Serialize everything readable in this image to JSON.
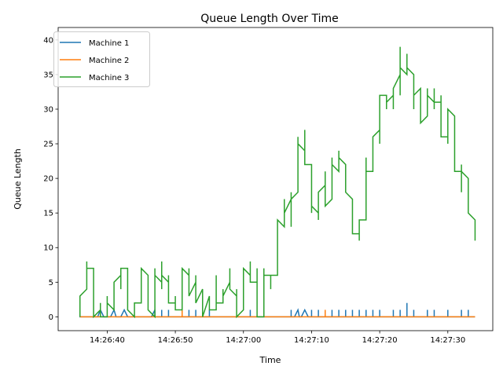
{
  "chart_data": {
    "type": "line",
    "title": "Queue Length Over Time",
    "xlabel": "Time",
    "ylabel": "Queue Length",
    "xlim": [
      "14:26:32.8",
      "14:27:36.6"
    ],
    "ylim": [
      -2,
      41.8
    ],
    "x_ticks": [
      "14:26:40",
      "14:26:50",
      "14:27:00",
      "14:27:10",
      "14:27:20",
      "14:27:30"
    ],
    "y_ticks": [
      0,
      5,
      10,
      15,
      20,
      25,
      30,
      35,
      40
    ],
    "grid": false,
    "legend_position": "top-left",
    "series": [
      {
        "name": "Machine 1",
        "color": "#1f77b4",
        "points": [
          [
            "14:26:36.0",
            0
          ],
          [
            "14:26:36.0",
            1
          ],
          [
            "14:26:36.0",
            0
          ],
          [
            "14:26:38.6",
            0
          ],
          [
            "14:26:39.0",
            1
          ],
          [
            "14:26:39.5",
            0
          ],
          [
            "14:26:40.5",
            0
          ],
          [
            "14:26:41.0",
            1
          ],
          [
            "14:26:41.3",
            0
          ],
          [
            "14:26:42.0",
            0
          ],
          [
            "14:26:42.5",
            1
          ],
          [
            "14:26:43.0",
            0
          ],
          [
            "14:26:46.5",
            0
          ],
          [
            "14:26:47.0",
            1
          ],
          [
            "14:26:47.0",
            0
          ],
          [
            "14:26:48.0",
            0
          ],
          [
            "14:26:48.0",
            1
          ],
          [
            "14:26:48.0",
            0
          ],
          [
            "14:26:49.0",
            0
          ],
          [
            "14:26:49.0",
            1
          ],
          [
            "14:26:49.0",
            0
          ],
          [
            "14:26:52.0",
            0
          ],
          [
            "14:26:52.0",
            1
          ],
          [
            "14:26:52.0",
            0
          ],
          [
            "14:26:53.0",
            0
          ],
          [
            "14:26:53.0",
            1
          ],
          [
            "14:26:53.0",
            0
          ],
          [
            "14:26:55.0",
            0
          ],
          [
            "14:26:55.0",
            1
          ],
          [
            "14:26:55.0",
            0
          ],
          [
            "14:27:01.0",
            0
          ],
          [
            "14:27:01.0",
            1
          ],
          [
            "14:27:01.0",
            0
          ],
          [
            "14:27:03.0",
            0
          ],
          [
            "14:27:03.0",
            1
          ],
          [
            "14:27:03.0",
            0
          ],
          [
            "14:27:07.0",
            0
          ],
          [
            "14:27:07.0",
            1
          ],
          [
            "14:27:07.0",
            0
          ],
          [
            "14:27:07.5",
            0
          ],
          [
            "14:27:08.0",
            1
          ],
          [
            "14:27:08.2",
            0
          ],
          [
            "14:27:08.5",
            0
          ],
          [
            "14:27:09.0",
            1
          ],
          [
            "14:27:09.5",
            0
          ],
          [
            "14:27:10.0",
            0
          ],
          [
            "14:27:10.0",
            1
          ],
          [
            "14:27:10.0",
            0
          ],
          [
            "14:27:11.0",
            0
          ],
          [
            "14:27:11.0",
            1
          ],
          [
            "14:27:11.0",
            0
          ],
          [
            "14:27:13.0",
            0
          ],
          [
            "14:27:13.0",
            1
          ],
          [
            "14:27:13.0",
            0
          ],
          [
            "14:27:14.0",
            0
          ],
          [
            "14:27:14.0",
            1
          ],
          [
            "14:27:14.0",
            0
          ],
          [
            "14:27:15.0",
            0
          ],
          [
            "14:27:15.0",
            1
          ],
          [
            "14:27:15.0",
            0
          ],
          [
            "14:27:16.0",
            0
          ],
          [
            "14:27:16.0",
            1
          ],
          [
            "14:27:16.0",
            0
          ],
          [
            "14:27:17.0",
            0
          ],
          [
            "14:27:17.0",
            1
          ],
          [
            "14:27:17.0",
            0
          ],
          [
            "14:27:18.0",
            0
          ],
          [
            "14:27:18.0",
            1
          ],
          [
            "14:27:18.0",
            0
          ],
          [
            "14:27:19.0",
            0
          ],
          [
            "14:27:19.0",
            1
          ],
          [
            "14:27:19.0",
            0
          ],
          [
            "14:27:20.0",
            0
          ],
          [
            "14:27:20.0",
            1
          ],
          [
            "14:27:20.0",
            0
          ],
          [
            "14:27:22.0",
            0
          ],
          [
            "14:27:22.0",
            1
          ],
          [
            "14:27:22.0",
            0
          ],
          [
            "14:27:23.0",
            0
          ],
          [
            "14:27:23.0",
            1
          ],
          [
            "14:27:23.0",
            0
          ],
          [
            "14:27:24.0",
            0
          ],
          [
            "14:27:24.0",
            2
          ],
          [
            "14:27:24.0",
            0
          ],
          [
            "14:27:25.0",
            0
          ],
          [
            "14:27:25.0",
            1
          ],
          [
            "14:27:25.0",
            0
          ],
          [
            "14:27:27.0",
            0
          ],
          [
            "14:27:27.0",
            1
          ],
          [
            "14:27:27.0",
            0
          ],
          [
            "14:27:28.0",
            0
          ],
          [
            "14:27:28.0",
            1
          ],
          [
            "14:27:28.0",
            0
          ],
          [
            "14:27:30.0",
            0
          ],
          [
            "14:27:30.0",
            1
          ],
          [
            "14:27:30.0",
            0
          ],
          [
            "14:27:32.0",
            0
          ],
          [
            "14:27:32.0",
            1
          ],
          [
            "14:27:32.0",
            0
          ],
          [
            "14:27:33.0",
            0
          ],
          [
            "14:27:33.0",
            1
          ],
          [
            "14:27:33.0",
            0
          ],
          [
            "14:27:34.0",
            0
          ]
        ]
      },
      {
        "name": "Machine 2",
        "color": "#ff7f0e",
        "points": [
          [
            "14:26:36.0",
            0
          ],
          [
            "14:26:51.0",
            0
          ],
          [
            "14:26:51.0",
            1
          ],
          [
            "14:26:51.0",
            0
          ],
          [
            "14:27:12.0",
            0
          ],
          [
            "14:27:12.0",
            1
          ],
          [
            "14:27:12.0",
            0
          ],
          [
            "14:27:34.0",
            0
          ]
        ]
      },
      {
        "name": "Machine 3",
        "color": "#2ca02c",
        "points": [
          [
            "14:26:36.0",
            0
          ],
          [
            "14:26:36.0",
            3
          ],
          [
            "14:26:37.0",
            4
          ],
          [
            "14:26:37.0",
            8
          ],
          [
            "14:26:37.0",
            7
          ],
          [
            "14:26:38.0",
            7
          ],
          [
            "14:26:38.0",
            0
          ],
          [
            "14:26:39.0",
            1
          ],
          [
            "14:26:39.0",
            2
          ],
          [
            "14:26:39.0",
            0
          ],
          [
            "14:26:40.0",
            0
          ],
          [
            "14:26:40.0",
            3
          ],
          [
            "14:26:40.0",
            2
          ],
          [
            "14:26:41.0",
            1
          ],
          [
            "14:26:41.0",
            5
          ],
          [
            "14:26:42.0",
            6
          ],
          [
            "14:26:42.0",
            4
          ],
          [
            "14:26:42.0",
            7
          ],
          [
            "14:26:43.0",
            7
          ],
          [
            "14:26:43.0",
            1
          ],
          [
            "14:26:44.0",
            0
          ],
          [
            "14:26:44.0",
            2
          ],
          [
            "14:26:45.0",
            2
          ],
          [
            "14:26:45.0",
            7
          ],
          [
            "14:26:46.0",
            6
          ],
          [
            "14:26:46.0",
            1
          ],
          [
            "14:26:47.0",
            0
          ],
          [
            "14:26:47.0",
            7
          ],
          [
            "14:26:47.0",
            6
          ],
          [
            "14:26:48.0",
            5
          ],
          [
            "14:26:48.0",
            8
          ],
          [
            "14:26:48.0",
            4
          ],
          [
            "14:26:48.0",
            6
          ],
          [
            "14:26:49.0",
            5
          ],
          [
            "14:26:49.0",
            6
          ],
          [
            "14:26:49.0",
            2
          ],
          [
            "14:26:50.0",
            2
          ],
          [
            "14:26:50.0",
            3
          ],
          [
            "14:26:50.0",
            1
          ],
          [
            "14:26:51.0",
            1
          ],
          [
            "14:26:51.0",
            7
          ],
          [
            "14:26:52.0",
            6
          ],
          [
            "14:26:52.0",
            7
          ],
          [
            "14:26:52.0",
            3
          ],
          [
            "14:26:53.0",
            5
          ],
          [
            "14:26:53.0",
            6
          ],
          [
            "14:26:53.0",
            2
          ],
          [
            "14:26:54.0",
            4
          ],
          [
            "14:26:54.0",
            3
          ],
          [
            "14:26:54.0",
            0
          ],
          [
            "14:26:55.0",
            3
          ],
          [
            "14:26:55.0",
            1
          ],
          [
            "14:26:56.0",
            1
          ],
          [
            "14:26:56.0",
            6
          ],
          [
            "14:26:56.0",
            2
          ],
          [
            "14:26:57.0",
            2
          ],
          [
            "14:26:57.0",
            4
          ],
          [
            "14:26:57.0",
            3
          ],
          [
            "14:26:58.0",
            5
          ],
          [
            "14:26:58.0",
            7
          ],
          [
            "14:26:58.0",
            4
          ],
          [
            "14:26:59.0",
            3
          ],
          [
            "14:26:59.0",
            4
          ],
          [
            "14:26:59.0",
            0
          ],
          [
            "14:27:00.0",
            1
          ],
          [
            "14:27:00.0",
            7
          ],
          [
            "14:27:01.0",
            6
          ],
          [
            "14:27:01.0",
            8
          ],
          [
            "14:27:01.0",
            5
          ],
          [
            "14:27:02.0",
            5
          ],
          [
            "14:27:02.0",
            7
          ],
          [
            "14:27:02.0",
            0
          ],
          [
            "14:27:03.0",
            0
          ],
          [
            "14:27:03.0",
            7
          ],
          [
            "14:27:03.0",
            6
          ],
          [
            "14:27:04.0",
            6
          ],
          [
            "14:27:04.0",
            4
          ],
          [
            "14:27:04.0",
            6
          ],
          [
            "14:27:05.0",
            6
          ],
          [
            "14:27:05.0",
            14
          ],
          [
            "14:27:06.0",
            13
          ],
          [
            "14:27:06.0",
            17
          ],
          [
            "14:27:06.0",
            15
          ],
          [
            "14:27:07.0",
            17
          ],
          [
            "14:27:07.0",
            18
          ],
          [
            "14:27:07.0",
            13
          ],
          [
            "14:27:07.0",
            17
          ],
          [
            "14:27:08.0",
            18
          ],
          [
            "14:27:08.0",
            26
          ],
          [
            "14:27:08.0",
            25
          ],
          [
            "14:27:09.0",
            24
          ],
          [
            "14:27:09.0",
            27
          ],
          [
            "14:27:09.0",
            22
          ],
          [
            "14:27:10.0",
            22
          ],
          [
            "14:27:10.0",
            15
          ],
          [
            "14:27:10.0",
            16
          ],
          [
            "14:27:11.0",
            15
          ],
          [
            "14:27:11.0",
            14
          ],
          [
            "14:27:11.0",
            18
          ],
          [
            "14:27:12.0",
            19
          ],
          [
            "14:27:12.0",
            21
          ],
          [
            "14:27:12.0",
            16
          ],
          [
            "14:27:13.0",
            17
          ],
          [
            "14:27:13.0",
            23
          ],
          [
            "14:27:13.0",
            22
          ],
          [
            "14:27:14.0",
            21
          ],
          [
            "14:27:14.0",
            24
          ],
          [
            "14:27:14.0",
            23
          ],
          [
            "14:27:15.0",
            22
          ],
          [
            "14:27:15.0",
            18
          ],
          [
            "14:27:16.0",
            17
          ],
          [
            "14:27:16.0",
            12
          ],
          [
            "14:27:17.0",
            12
          ],
          [
            "14:27:17.0",
            11
          ],
          [
            "14:27:17.0",
            14
          ],
          [
            "14:27:18.0",
            14
          ],
          [
            "14:27:18.0",
            23
          ],
          [
            "14:27:18.0",
            21
          ],
          [
            "14:27:19.0",
            21
          ],
          [
            "14:27:19.0",
            26
          ],
          [
            "14:27:20.0",
            27
          ],
          [
            "14:27:20.0",
            25
          ],
          [
            "14:27:20.0",
            32
          ],
          [
            "14:27:21.0",
            32
          ],
          [
            "14:27:21.0",
            30
          ],
          [
            "14:27:21.0",
            31
          ],
          [
            "14:27:22.0",
            32
          ],
          [
            "14:27:22.0",
            30
          ],
          [
            "14:27:22.0",
            33
          ],
          [
            "14:27:23.0",
            35
          ],
          [
            "14:27:23.0",
            39
          ],
          [
            "14:27:23.0",
            32
          ],
          [
            "14:27:23.0",
            36
          ],
          [
            "14:27:24.0",
            35
          ],
          [
            "14:27:24.0",
            38
          ],
          [
            "14:27:24.0",
            36
          ],
          [
            "14:27:25.0",
            35
          ],
          [
            "14:27:25.0",
            30
          ],
          [
            "14:27:25.0",
            32
          ],
          [
            "14:27:26.0",
            33
          ],
          [
            "14:27:26.0",
            28
          ],
          [
            "14:27:27.0",
            29
          ],
          [
            "14:27:27.0",
            33
          ],
          [
            "14:27:27.0",
            32
          ],
          [
            "14:27:28.0",
            31
          ],
          [
            "14:27:28.0",
            33
          ],
          [
            "14:27:28.0",
            30
          ],
          [
            "14:27:28.0",
            31
          ],
          [
            "14:27:29.0",
            31
          ],
          [
            "14:27:29.0",
            32
          ],
          [
            "14:27:29.0",
            26
          ],
          [
            "14:27:30.0",
            26
          ],
          [
            "14:27:30.0",
            25
          ],
          [
            "14:27:30.0",
            30
          ],
          [
            "14:27:31.0",
            29
          ],
          [
            "14:27:31.0",
            21
          ],
          [
            "14:27:32.0",
            21
          ],
          [
            "14:27:32.0",
            18
          ],
          [
            "14:27:32.0",
            22
          ],
          [
            "14:27:32.0",
            21
          ],
          [
            "14:27:33.0",
            20
          ],
          [
            "14:27:33.0",
            15
          ],
          [
            "14:27:34.0",
            14
          ],
          [
            "14:27:34.0",
            11
          ],
          [
            "14:27:34.0",
            13
          ]
        ]
      }
    ]
  }
}
